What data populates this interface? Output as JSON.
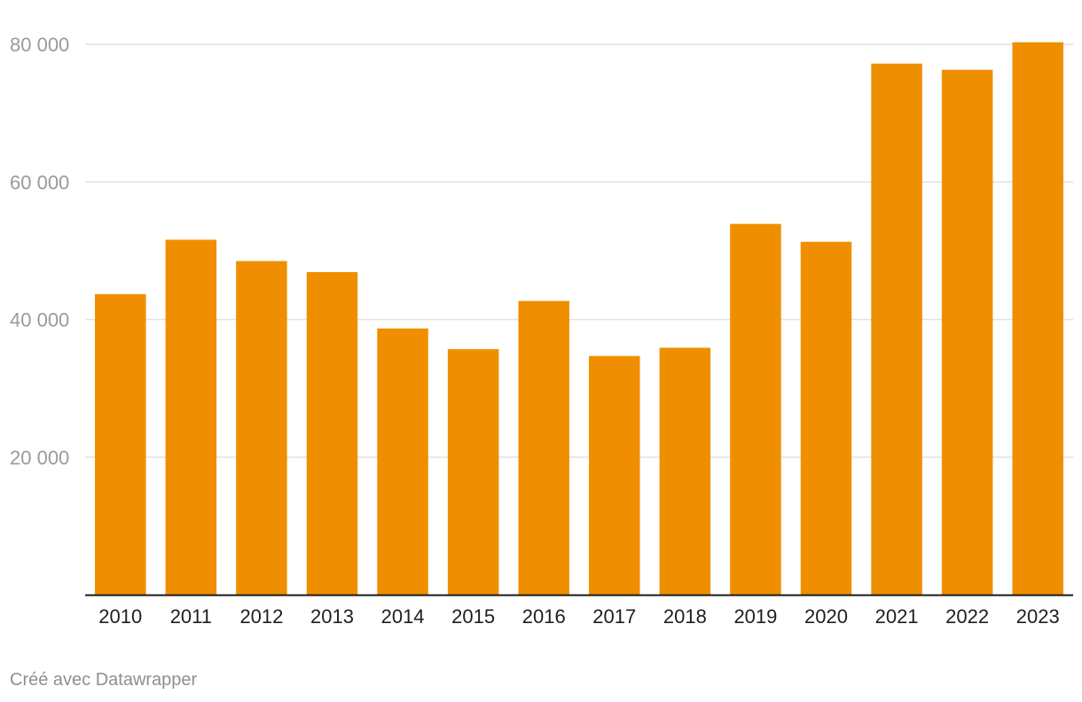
{
  "chart_data": {
    "type": "bar",
    "categories": [
      "2010",
      "2011",
      "2012",
      "2013",
      "2014",
      "2015",
      "2016",
      "2017",
      "2018",
      "2019",
      "2020",
      "2021",
      "2022",
      "2023"
    ],
    "values": [
      43700,
      51600,
      48500,
      46900,
      38700,
      35700,
      42700,
      34700,
      35900,
      53900,
      51300,
      77200,
      76300,
      80300
    ],
    "yticks": [
      20000,
      40000,
      60000,
      80000
    ],
    "ytick_labels": [
      "20 000",
      "40 000",
      "60 000",
      "80 000"
    ],
    "ylim": [
      0,
      80000
    ],
    "grid": true,
    "bar_color": "#ef8f00",
    "title": "",
    "xlabel": "",
    "ylabel": ""
  },
  "footer": {
    "credit": "Créé avec Datawrapper"
  }
}
